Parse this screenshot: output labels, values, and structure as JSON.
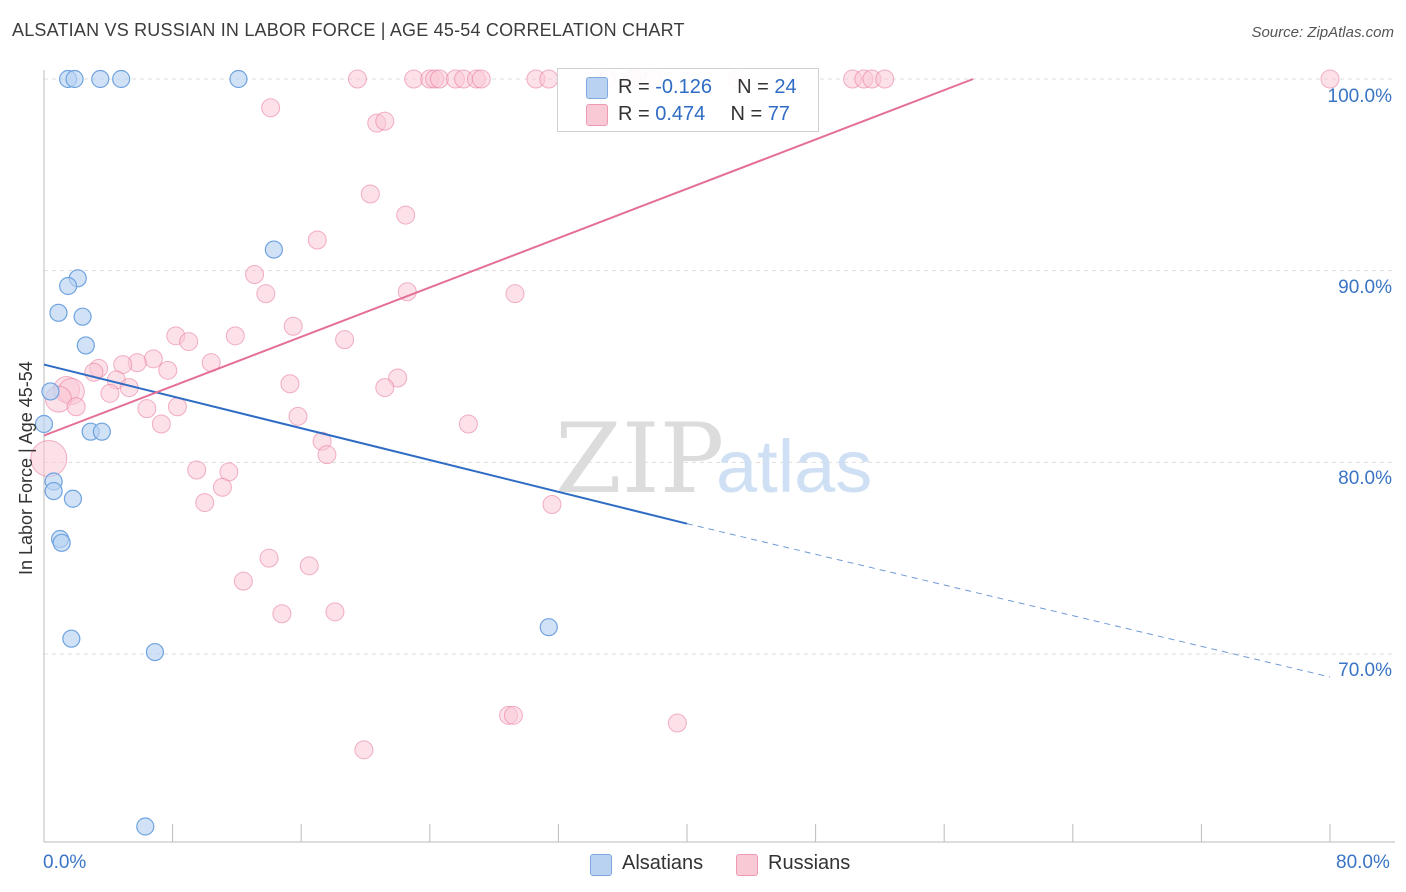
{
  "header": {
    "title": "ALSATIAN VS RUSSIAN IN LABOR FORCE | AGE 45-54 CORRELATION CHART",
    "source": "Source: ZipAtlas.com"
  },
  "watermark": {
    "zip": "ZIP",
    "atlas": "atlas"
  },
  "legend": {
    "alsatians": {
      "r_label": "R =",
      "r_value": "-0.126",
      "n_label": "N =",
      "n_value": "24",
      "color": "#a9c8ef"
    },
    "russians": {
      "r_label": "R =",
      "r_value": "0.474",
      "n_label": "N =",
      "n_value": "77",
      "color": "#f7bccd"
    }
  },
  "bottom_legend": {
    "alsatians": "Alsatians",
    "russians": "Russians"
  },
  "chart_data": {
    "type": "scatter",
    "title": "ALSATIAN VS RUSSIAN IN LABOR FORCE | AGE 45-54 CORRELATION CHART",
    "xlabel": "",
    "ylabel": "In Labor Force | Age 45-54",
    "xlim": [
      0,
      80
    ],
    "ylim": [
      60.5,
      100.5
    ],
    "x_tick_labels": [
      "0.0%",
      "80.0%"
    ],
    "y_tick_labels": [
      "100.0%",
      "90.0%",
      "80.0%",
      "70.0%"
    ],
    "y_ticks": [
      100,
      90,
      80,
      70
    ],
    "grid": true,
    "legend_position": "top-center",
    "series": [
      {
        "name": "Alsatians",
        "color": "#6fa3e0",
        "fill": "#b9d2f2",
        "points": [
          [
            1.5,
            100
          ],
          [
            1.9,
            100
          ],
          [
            3.5,
            100
          ],
          [
            4.8,
            100
          ],
          [
            12.1,
            100
          ],
          [
            14.3,
            91.1
          ],
          [
            2.1,
            89.6
          ],
          [
            1.5,
            89.2
          ],
          [
            0.9,
            87.8
          ],
          [
            2.4,
            87.6
          ],
          [
            2.6,
            86.1
          ],
          [
            0.4,
            83.7
          ],
          [
            2.9,
            81.6
          ],
          [
            3.6,
            81.6
          ],
          [
            0.0,
            82.0
          ],
          [
            0.6,
            79.0
          ],
          [
            0.6,
            78.5
          ],
          [
            1.8,
            78.1
          ],
          [
            1.0,
            76.0
          ],
          [
            1.1,
            75.8
          ],
          [
            1.7,
            70.8
          ],
          [
            6.9,
            70.1
          ],
          [
            31.4,
            71.4
          ],
          [
            6.3,
            61.0
          ]
        ],
        "trend": {
          "x1": 0,
          "y1": 85.1,
          "x2": 40,
          "y2": 76.8,
          "dashed_to_x": 80,
          "dashed_to_y": 68.8
        }
      },
      {
        "name": "Russians",
        "color": "#e8759a",
        "fill": "#f9c9d6",
        "points": [
          [
            19.5,
            100
          ],
          [
            23.0,
            100
          ],
          [
            24.0,
            100
          ],
          [
            24.3,
            100
          ],
          [
            24.6,
            100
          ],
          [
            25.6,
            100
          ],
          [
            26.1,
            100
          ],
          [
            26.9,
            100
          ],
          [
            30.6,
            100
          ],
          [
            31.4,
            100
          ],
          [
            34.3,
            100
          ],
          [
            35.0,
            100
          ],
          [
            36.6,
            100
          ],
          [
            37.1,
            100
          ],
          [
            37.9,
            100
          ],
          [
            50.3,
            100
          ],
          [
            51.0,
            100
          ],
          [
            51.5,
            100
          ],
          [
            52.3,
            100
          ],
          [
            80.0,
            100
          ],
          [
            43.1,
            100
          ],
          [
            27.2,
            100
          ],
          [
            14.1,
            98.5
          ],
          [
            20.7,
            97.7
          ],
          [
            21.2,
            97.8
          ],
          [
            20.3,
            94.0
          ],
          [
            22.5,
            92.9
          ],
          [
            17.0,
            91.6
          ],
          [
            13.1,
            89.8
          ],
          [
            13.8,
            88.8
          ],
          [
            22.6,
            88.9
          ],
          [
            29.3,
            88.8
          ],
          [
            15.5,
            87.1
          ],
          [
            11.9,
            86.6
          ],
          [
            8.2,
            86.6
          ],
          [
            9.0,
            86.3
          ],
          [
            18.7,
            86.4
          ],
          [
            6.8,
            85.4
          ],
          [
            5.8,
            85.2
          ],
          [
            4.9,
            85.1
          ],
          [
            10.4,
            85.2
          ],
          [
            3.4,
            84.9
          ],
          [
            7.7,
            84.8
          ],
          [
            3.1,
            84.7
          ],
          [
            22.0,
            84.4
          ],
          [
            15.3,
            84.1
          ],
          [
            4.5,
            84.3
          ],
          [
            21.2,
            83.9
          ],
          [
            1.4,
            83.8
          ],
          [
            5.3,
            83.9
          ],
          [
            4.1,
            83.6
          ],
          [
            1.7,
            83.7
          ],
          [
            0.9,
            83.3
          ],
          [
            2.0,
            82.9
          ],
          [
            8.3,
            82.9
          ],
          [
            6.4,
            82.8
          ],
          [
            15.8,
            82.4
          ],
          [
            7.3,
            82.0
          ],
          [
            26.4,
            82.0
          ],
          [
            17.3,
            81.1
          ],
          [
            17.6,
            80.4
          ],
          [
            0.3,
            80.2
          ],
          [
            9.5,
            79.6
          ],
          [
            11.5,
            79.5
          ],
          [
            11.1,
            78.7
          ],
          [
            10.0,
            77.9
          ],
          [
            31.6,
            77.8
          ],
          [
            14.0,
            75.0
          ],
          [
            16.5,
            74.6
          ],
          [
            12.4,
            73.8
          ],
          [
            14.8,
            72.1
          ],
          [
            18.1,
            72.2
          ],
          [
            28.9,
            66.8
          ],
          [
            29.2,
            66.8
          ],
          [
            39.4,
            66.4
          ],
          [
            19.9,
            65.0
          ],
          [
            36.6,
            100
          ]
        ],
        "trend": {
          "x1": 0,
          "y1": 81.4,
          "x2": 57.8,
          "y2": 100
        }
      }
    ]
  }
}
